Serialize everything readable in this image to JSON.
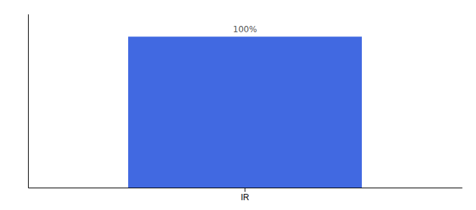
{
  "chart_data": {
    "type": "bar",
    "categories": [
      "IR"
    ],
    "values": [
      100
    ],
    "value_labels": [
      "100%"
    ],
    "data_labels": true,
    "color": "#4169E1",
    "ylim": [
      0,
      115
    ],
    "tick_labels": "x"
  }
}
